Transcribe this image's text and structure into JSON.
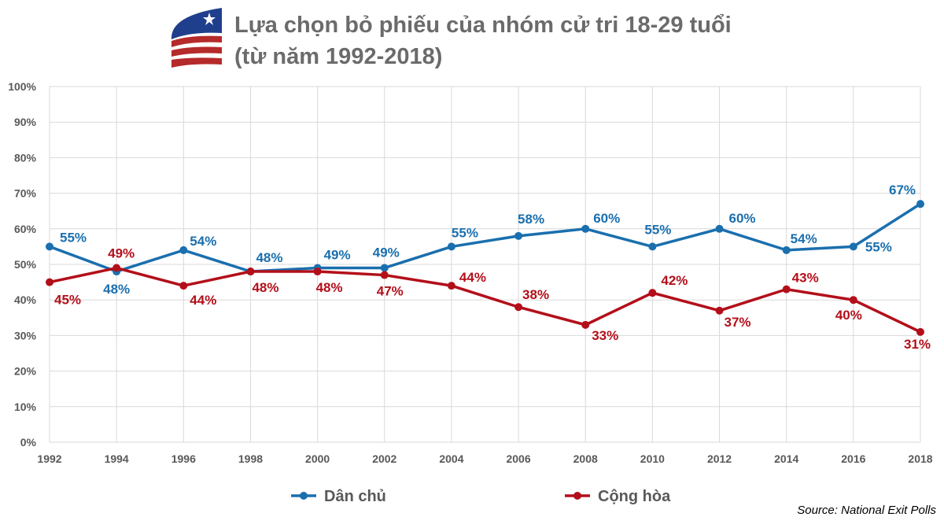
{
  "title_line1": "Lựa chọn bỏ phiếu của nhóm cử tri 18-29 tuổi",
  "title_line2": "(từ năm 1992-2018)",
  "source": "Source: National Exit Polls",
  "chart_data": {
    "type": "line",
    "title": "Lựa chọn bỏ phiếu của nhóm cử tri 18-29 tuổi (từ năm 1992-2018)",
    "categories": [
      "1992",
      "1994",
      "1996",
      "1998",
      "2000",
      "2002",
      "2004",
      "2006",
      "2008",
      "2010",
      "2012",
      "2014",
      "2016",
      "2018"
    ],
    "yticks": [
      "0%",
      "10%",
      "20%",
      "30%",
      "40%",
      "50%",
      "60%",
      "70%",
      "80%",
      "90%",
      "100%"
    ],
    "ylim": [
      0,
      100
    ],
    "grid": true,
    "legend": "bottom",
    "series": [
      {
        "name": "Dân chủ",
        "color": "#1a6fae",
        "values": [
          55,
          48,
          54,
          48,
          49,
          49,
          55,
          58,
          60,
          55,
          60,
          54,
          55,
          67
        ]
      },
      {
        "name": "Cộng hòa",
        "color": "#b30f1a",
        "values": [
          45,
          49,
          44,
          48,
          48,
          47,
          44,
          38,
          33,
          42,
          37,
          43,
          40,
          31
        ]
      }
    ]
  }
}
